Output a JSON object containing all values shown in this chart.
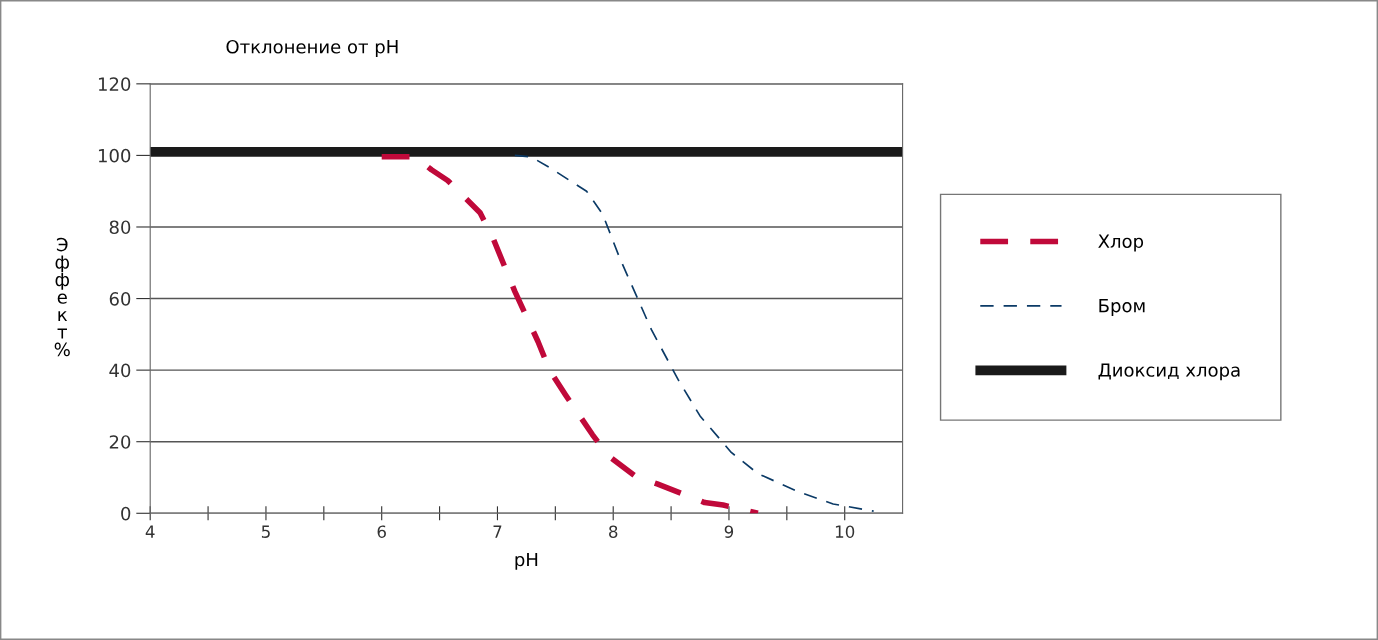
{
  "chart_data": {
    "type": "line",
    "title": "Отклонение от pH",
    "xlabel": "pH",
    "ylabel": "Эффект %",
    "xlim": [
      4,
      10.5
    ],
    "xticks": [
      4,
      {
        "value": 4.5,
        "label": null
      },
      5,
      {
        "value": 5.5,
        "label": null
      },
      6,
      {
        "value": 6.5,
        "label": null
      },
      7,
      {
        "value": 7.5,
        "label": null
      },
      8,
      {
        "value": 8.5,
        "label": null
      },
      9,
      {
        "value": 9.5,
        "label": null
      },
      10
    ],
    "ylim": [
      0,
      120
    ],
    "yticks": [
      0,
      20,
      40,
      60,
      80,
      100,
      120
    ],
    "grid": "y",
    "legend": "right",
    "marker": "none",
    "series": [
      {
        "name": "Хлор",
        "color": "#c0093a",
        "line_style": "dashed",
        "x": [
          6.0,
          6.15,
          6.29,
          6.43,
          6.57,
          6.85,
          6.96,
          7.15,
          7.35,
          7.45,
          7.59,
          7.82,
          7.96,
          8.19,
          8.38,
          8.79,
          8.95,
          9.25
        ],
        "values": [
          99.6,
          99.6,
          99.6,
          96,
          93,
          84,
          77,
          62,
          48,
          40,
          33,
          22,
          16,
          10.4,
          8.2,
          3,
          2.3,
          0
        ]
      },
      {
        "name": "Бром",
        "color": "#0b3a66",
        "line_style": "dashed",
        "x": [
          7.15,
          7.29,
          7.45,
          7.77,
          7.91,
          8.05,
          8.2,
          8.33,
          8.56,
          8.75,
          9.02,
          9.25,
          9.6,
          9.9,
          10.25
        ],
        "values": [
          100,
          99.6,
          96.6,
          90,
          83.5,
          71.8,
          60.8,
          51.3,
          37.4,
          27.2,
          17,
          11.1,
          6,
          2.6,
          0.6
        ]
      },
      {
        "name": "Диоксид хлора",
        "color": "#1a1a1a",
        "line_style": "solid",
        "x": [
          4,
          10.5
        ],
        "values": [
          101,
          101
        ]
      }
    ]
  }
}
